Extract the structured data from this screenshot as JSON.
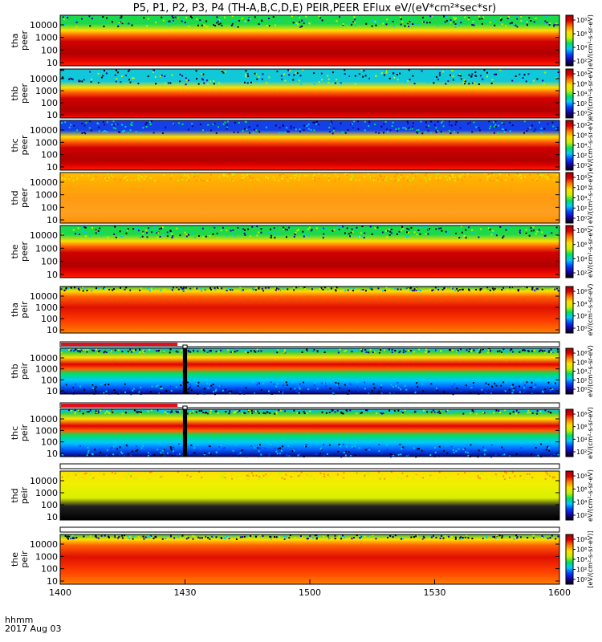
{
  "chart_data": {
    "type": "heatmap",
    "title": "P5, P1, P2, P3, P4 (TH-A,B,C,D,E) PEIR,PEER EFlux eV/(eV*cm²*sec*sr)",
    "time_axis": {
      "ticks": [
        "1400",
        "1430",
        "1500",
        "1530",
        "1600"
      ],
      "xlim_minutes": [
        0,
        120
      ],
      "label_line1": "hhmm",
      "label_line2": "2017 Aug 03"
    },
    "energy_ticks": [
      "10",
      "100",
      "1000",
      "10000"
    ],
    "energy_scale": "log",
    "colorbar_unit": "eV/(cm²-s-sr-eV)",
    "colorbar_unit_bottom": "[eV/(cm²-s-sr-eV)]",
    "panels": [
      {
        "label1": "tha",
        "label2": "peer",
        "colorbar_ticks": [
          "10⁸",
          "10⁶",
          "10⁴",
          "10²"
        ],
        "noise_color": "#1bd94a",
        "band_center_fraction": 0.22
      },
      {
        "label1": "thb",
        "label2": "peer",
        "colorbar_ticks": [
          "10⁸",
          "10⁶",
          "10⁴",
          "10²",
          "10⁰"
        ],
        "noise_color": "#10c8d8",
        "band_center_fraction": 0.3
      },
      {
        "label1": "thc",
        "label2": "peer",
        "colorbar_ticks": [
          "10⁸",
          "10⁶",
          "10⁴",
          "10²",
          "10⁰"
        ],
        "noise_color": "#1440e8",
        "band_center_fraction": 0.25
      },
      {
        "label1": "thd",
        "label2": "peer",
        "colorbar_ticks": [
          "10⁸",
          "10⁶",
          "10⁴",
          "10²",
          "10⁰"
        ],
        "noise_color": "#ffd020",
        "band_center_fraction": 0.35
      },
      {
        "label1": "the",
        "label2": "peer",
        "colorbar_ticks": [
          "10⁸",
          "10⁶",
          "10⁴",
          "10²"
        ],
        "noise_color": "#1bd94a",
        "band_center_fraction": 0.22
      },
      {
        "label1": "tha",
        "label2": "peir",
        "colorbar_ticks": [
          "10⁶",
          "10⁴",
          "10²",
          "10⁰"
        ],
        "noise_color": "#38c840",
        "band_center_fraction": 0.45
      },
      {
        "label1": "thb",
        "label2": "peir",
        "colorbar_ticks": [
          "10⁸",
          "10⁶",
          "10⁴",
          "10²",
          "10⁰"
        ],
        "noise_color": "#10b8e8",
        "band_center_fraction": 0.62
      },
      {
        "label1": "thc",
        "label2": "peir",
        "colorbar_ticks": [
          "10⁸",
          "10⁶",
          "10⁴",
          "10²"
        ],
        "noise_color": "#10b8e8",
        "band_center_fraction": 0.62
      },
      {
        "label1": "thd",
        "label2": "peir",
        "colorbar_ticks": [
          "10⁸",
          "10⁶",
          "10⁴",
          "10²"
        ],
        "noise_color": "#ffe000",
        "band_center_fraction": 0.45
      },
      {
        "label1": "the",
        "label2": "peir",
        "colorbar_ticks": [
          "10⁸",
          "10⁶",
          "10⁴",
          "10²",
          "10⁰"
        ],
        "noise_color": "#38c840",
        "band_center_fraction": 0.45
      }
    ],
    "data_gaps_minutes": [
      {
        "panel": 6,
        "start": 29.5,
        "end": 30.5
      },
      {
        "panel": 7,
        "start": 29.5,
        "end": 30.5
      }
    ],
    "colorscale": [
      "#000000",
      "#1a00a0",
      "#0040ff",
      "#00c8ff",
      "#00e060",
      "#c8f000",
      "#ffe000",
      "#ff8000",
      "#e00000",
      "#a00000"
    ]
  }
}
